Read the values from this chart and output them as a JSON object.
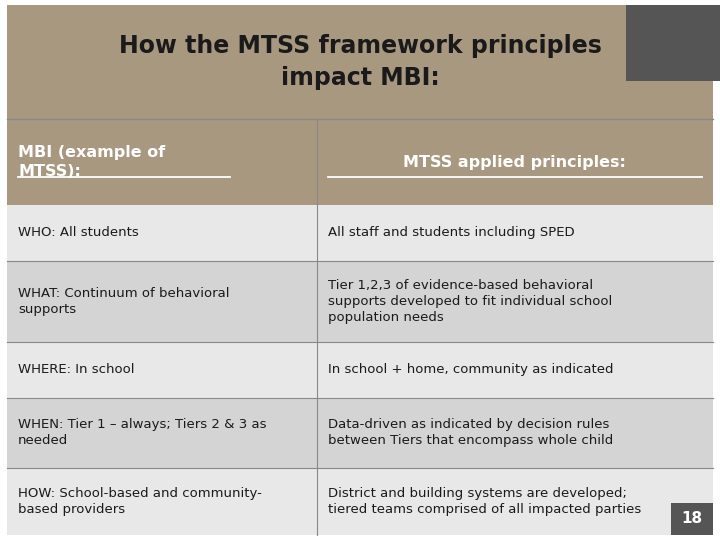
{
  "title": "How the MTSS framework principles\nimpact MBI:",
  "title_bg": "#a89880",
  "title_color": "#1a1a1a",
  "header_bg": "#a89880",
  "header_col1": "MBI (example of\nMTSS):",
  "header_col2": "MTSS applied principles:",
  "header_text_color": "#ffffff",
  "row_text_color": "#1a1a1a",
  "rows": [
    {
      "col1": "WHO: All students",
      "col2": "All staff and students including SPED",
      "bg": "#e8e8e8"
    },
    {
      "col1": "WHAT: Continuum of behavioral\nsupports",
      "col2": "Tier 1,2,3 of evidence-based behavioral\nsupports developed to fit individual school\npopulation needs",
      "bg": "#d4d4d4"
    },
    {
      "col1": "WHERE: In school",
      "col2": "In school + home, community as indicated",
      "bg": "#e8e8e8"
    },
    {
      "col1": "WHEN: Tier 1 – always; Tiers 2 & 3 as\nneeded",
      "col2": "Data-driven as indicated by decision rules\nbetween Tiers that encompass whole child",
      "bg": "#d4d4d4"
    },
    {
      "col1": "HOW: School-based and community-\nbased providers",
      "col2": "District and building systems are developed;\ntiered teams comprised of all impacted parties",
      "bg": "#e8e8e8"
    }
  ],
  "page_number": "18",
  "page_num_bg": "#555555",
  "col_split": 0.44,
  "divider_color": "#888888",
  "outer_bg": "#ffffff",
  "dark_corner_bg": "#555555"
}
